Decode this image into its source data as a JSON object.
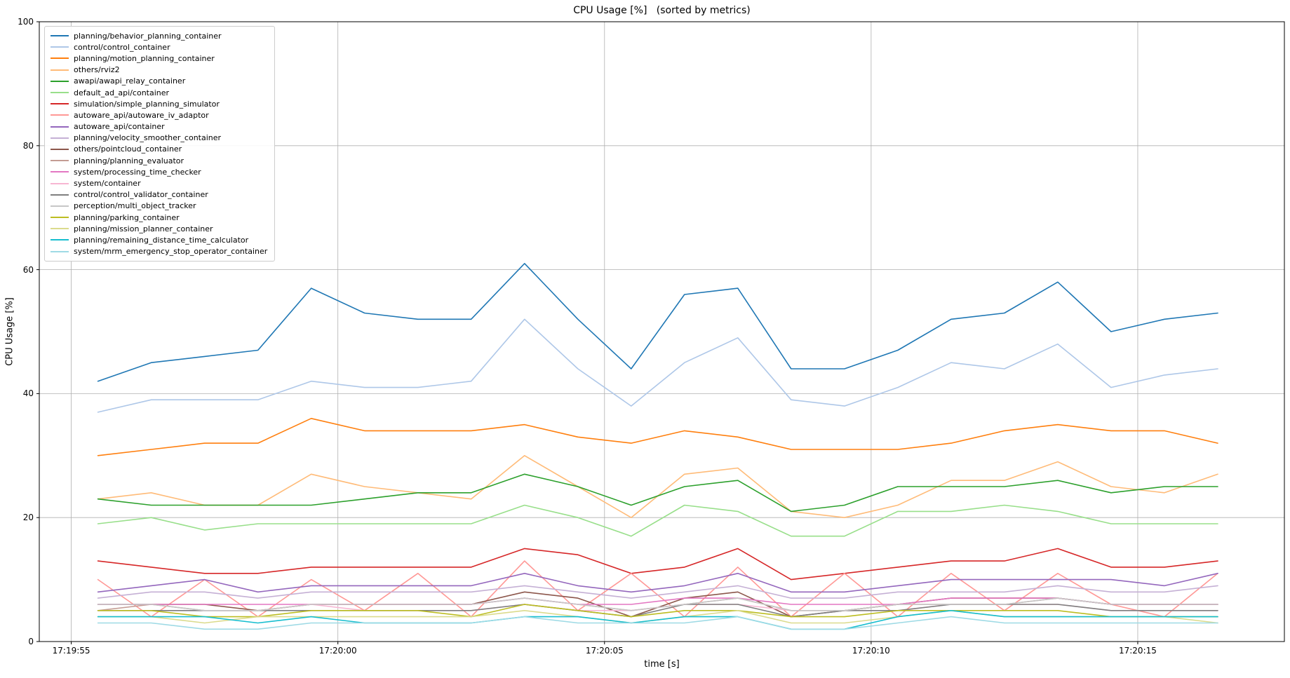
{
  "chart_data": {
    "type": "line",
    "title": "CPU Usage [%]   (sorted by metrics)",
    "xlabel": "time [s]",
    "ylabel": "CPU Usage [%]",
    "ylim": [
      0,
      100
    ],
    "grid": true,
    "legend_position": "upper left",
    "yticks": [
      0,
      20,
      40,
      60,
      80,
      100
    ],
    "ytick_labels": [
      "0",
      "20",
      "40",
      "60",
      "80",
      "100"
    ],
    "xtick_labels": [
      "17:19:55",
      "17:20:00",
      "17:20:05",
      "17:20:10",
      "17:20:15"
    ],
    "xtick_seconds": [
      0,
      5,
      10,
      15,
      20
    ],
    "x": [
      0.5,
      1.5,
      2.5,
      3.5,
      4.5,
      5.5,
      6.5,
      7.5,
      8.5,
      9.5,
      10.5,
      11.5,
      12.5,
      13.5,
      14.5,
      15.5,
      16.5,
      17.5,
      18.5,
      19.5,
      20.5,
      21.5
    ],
    "series": [
      {
        "name": "planning/behavior_planning_container",
        "color": "#1f77b4",
        "values": [
          42,
          45,
          46,
          47,
          57,
          53,
          52,
          52,
          61,
          52,
          44,
          56,
          57,
          44,
          44,
          47,
          52,
          53,
          58,
          50,
          52,
          53
        ]
      },
      {
        "name": "control/control_container",
        "color": "#aec7e8",
        "values": [
          37,
          39,
          39,
          39,
          42,
          41,
          41,
          42,
          52,
          44,
          38,
          45,
          49,
          39,
          38,
          41,
          45,
          44,
          48,
          41,
          43,
          44
        ]
      },
      {
        "name": "planning/motion_planning_container",
        "color": "#ff7f0e",
        "values": [
          30,
          31,
          32,
          32,
          36,
          34,
          34,
          34,
          35,
          33,
          32,
          34,
          33,
          31,
          31,
          31,
          32,
          34,
          35,
          34,
          34,
          32
        ]
      },
      {
        "name": "others/rviz2",
        "color": "#ffbb78",
        "values": [
          23,
          24,
          22,
          22,
          27,
          25,
          24,
          23,
          30,
          25,
          20,
          27,
          28,
          21,
          20,
          22,
          26,
          26,
          29,
          25,
          24,
          27
        ]
      },
      {
        "name": "awapi/awapi_relay_container",
        "color": "#2ca02c",
        "values": [
          23,
          22,
          22,
          22,
          22,
          23,
          24,
          24,
          27,
          25,
          22,
          25,
          26,
          21,
          22,
          25,
          25,
          25,
          26,
          24,
          25,
          25
        ]
      },
      {
        "name": "default_ad_api/container",
        "color": "#98df8a",
        "values": [
          19,
          20,
          18,
          19,
          19,
          19,
          19,
          19,
          22,
          20,
          17,
          22,
          21,
          17,
          17,
          21,
          21,
          22,
          21,
          19,
          19,
          19
        ]
      },
      {
        "name": "simulation/simple_planning_simulator",
        "color": "#d62728",
        "values": [
          13,
          12,
          11,
          11,
          12,
          12,
          12,
          12,
          15,
          14,
          11,
          12,
          15,
          10,
          11,
          12,
          13,
          13,
          15,
          12,
          12,
          13
        ]
      },
      {
        "name": "autoware_api/autoware_iv_adaptor",
        "color": "#ff9896",
        "values": [
          10,
          4,
          10,
          4,
          10,
          5,
          11,
          4,
          13,
          5,
          11,
          4,
          12,
          4,
          11,
          4,
          11,
          5,
          11,
          6,
          4,
          11
        ]
      },
      {
        "name": "autoware_api/container",
        "color": "#9467bd",
        "values": [
          8,
          9,
          10,
          8,
          9,
          9,
          9,
          9,
          11,
          9,
          8,
          9,
          11,
          8,
          8,
          9,
          10,
          10,
          10,
          10,
          9,
          11
        ]
      },
      {
        "name": "planning/velocity_smoother_container",
        "color": "#c5b0d5",
        "values": [
          7,
          8,
          8,
          7,
          8,
          8,
          8,
          8,
          9,
          8,
          7,
          8,
          9,
          7,
          7,
          8,
          8,
          8,
          9,
          8,
          8,
          9
        ]
      },
      {
        "name": "others/pointcloud_container",
        "color": "#8c564b",
        "values": [
          6,
          6,
          6,
          5,
          6,
          6,
          6,
          6,
          8,
          7,
          4,
          7,
          8,
          4,
          5,
          6,
          7,
          7,
          7,
          6,
          6,
          6
        ]
      },
      {
        "name": "planning/planning_evaluator",
        "color": "#c49c94",
        "values": [
          5,
          6,
          5,
          5,
          6,
          6,
          6,
          6,
          7,
          6,
          5,
          6,
          7,
          5,
          5,
          6,
          6,
          6,
          7,
          6,
          6,
          6
        ]
      },
      {
        "name": "system/processing_time_checker",
        "color": "#e377c2",
        "values": [
          6,
          6,
          6,
          6,
          6,
          6,
          6,
          6,
          7,
          6,
          6,
          7,
          7,
          6,
          6,
          6,
          7,
          7,
          7,
          6,
          6,
          6
        ]
      },
      {
        "name": "system/container",
        "color": "#f7b6d2",
        "values": [
          5,
          5,
          5,
          5,
          6,
          5,
          5,
          5,
          6,
          5,
          5,
          6,
          6,
          5,
          5,
          5,
          6,
          6,
          6,
          5,
          5,
          5
        ]
      },
      {
        "name": "control/control_validator_container",
        "color": "#7f7f7f",
        "values": [
          5,
          5,
          5,
          5,
          5,
          5,
          5,
          5,
          6,
          5,
          4,
          6,
          6,
          4,
          5,
          5,
          6,
          6,
          6,
          5,
          5,
          5
        ]
      },
      {
        "name": "perception/multi_object_tracker",
        "color": "#c7c7c7",
        "values": [
          6,
          6,
          5,
          5,
          6,
          6,
          6,
          6,
          7,
          6,
          5,
          6,
          7,
          5,
          5,
          6,
          6,
          6,
          7,
          6,
          6,
          6
        ]
      },
      {
        "name": "planning/parking_container",
        "color": "#bcbd22",
        "values": [
          5,
          5,
          4,
          4,
          5,
          5,
          5,
          4,
          6,
          5,
          4,
          5,
          5,
          4,
          4,
          5,
          5,
          5,
          5,
          4,
          4,
          4
        ]
      },
      {
        "name": "planning/mission_planner_container",
        "color": "#dbdb8d",
        "values": [
          4,
          4,
          3,
          4,
          4,
          4,
          4,
          4,
          5,
          4,
          3,
          4,
          5,
          3,
          3,
          4,
          5,
          4,
          4,
          4,
          4,
          3
        ]
      },
      {
        "name": "planning/remaining_distance_time_calculator",
        "color": "#17becf",
        "values": [
          4,
          4,
          4,
          3,
          4,
          3,
          3,
          3,
          4,
          4,
          3,
          4,
          4,
          2,
          2,
          4,
          5,
          4,
          4,
          4,
          4,
          4
        ]
      },
      {
        "name": "system/mrm_emergency_stop_operator_container",
        "color": "#9edae5",
        "values": [
          3,
          3,
          2,
          2,
          3,
          3,
          3,
          3,
          4,
          3,
          3,
          3,
          4,
          2,
          2,
          3,
          4,
          3,
          3,
          3,
          3,
          3
        ]
      }
    ]
  }
}
